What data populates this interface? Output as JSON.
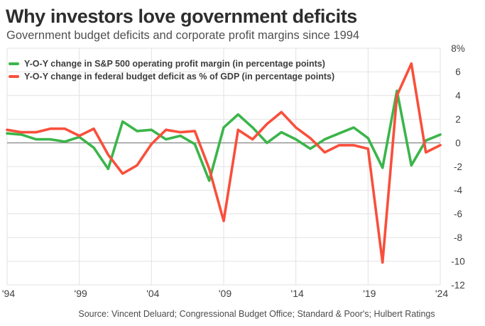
{
  "header": {
    "title": "Why investors love government deficits",
    "subtitle": "Government budget deficits and corporate profit margins since 1994"
  },
  "footer": {
    "source": "Source: Vincent Deluard; Congressional Budget Office; Standard & Poor's; Hulbert Ratings"
  },
  "colors": {
    "green_line": "#3bb54a",
    "red_line": "#f94f3b",
    "gridline": "#e2e2e2",
    "zero_line": "#8d8d8d",
    "tick_text": "#3f3f3f"
  },
  "chart_data": {
    "type": "line",
    "x": [
      1994,
      1995,
      1996,
      1997,
      1998,
      1999,
      2000,
      2001,
      2002,
      2003,
      2004,
      2005,
      2006,
      2007,
      2008,
      2009,
      2010,
      2011,
      2012,
      2013,
      2014,
      2015,
      2016,
      2017,
      2018,
      2019,
      2020,
      2021,
      2022,
      2023,
      2024
    ],
    "series": [
      {
        "name": "Y-O-Y change in S&P 500 operating profit margin (in percentage points)",
        "color": "#3bb54a",
        "values": [
          0.8,
          0.7,
          0.3,
          0.3,
          0.1,
          0.5,
          -0.4,
          -2.2,
          1.8,
          1.0,
          1.1,
          0.3,
          0.6,
          -0.1,
          -3.2,
          1.3,
          2.4,
          1.3,
          0.0,
          0.9,
          0.3,
          -0.5,
          0.3,
          0.8,
          1.3,
          0.4,
          -2.1,
          4.4,
          -1.9,
          0.2,
          0.7
        ]
      },
      {
        "name": "Y-O-Y change in federal budget deficit as % of GDP (in percentage points)",
        "color": "#f94f3b",
        "values": [
          1.1,
          0.9,
          0.9,
          1.2,
          1.2,
          0.6,
          1.2,
          -1.0,
          -2.6,
          -1.9,
          -0.1,
          1.1,
          0.9,
          1.0,
          -2.2,
          -6.6,
          1.1,
          0.3,
          1.6,
          2.6,
          1.3,
          0.4,
          -0.8,
          -0.2,
          -0.2,
          -0.5,
          -10.1,
          4.0,
          6.7,
          -0.8,
          -0.2
        ]
      }
    ],
    "ylim": [
      -12,
      8
    ],
    "ytick_values": [
      8,
      6,
      4,
      2,
      0,
      -2,
      -4,
      -6,
      -8,
      -10,
      -12
    ],
    "ytick_labels": [
      "8%",
      "6",
      "4",
      "2",
      "0",
      "-2",
      "-4",
      "-6",
      "-8",
      "-10",
      "-12"
    ],
    "xtick_years": [
      1994,
      1999,
      2004,
      2009,
      2014,
      2019,
      2024
    ],
    "xtick_labels": [
      "'94",
      "'99",
      "'04",
      "'09",
      "'14",
      "'19",
      "'24"
    ],
    "grid": true,
    "legend_position": "top-left"
  }
}
